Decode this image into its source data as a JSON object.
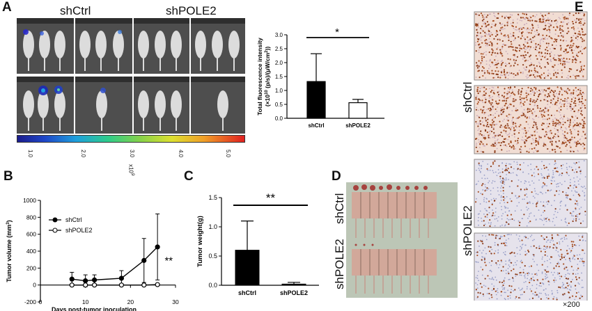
{
  "panel_labels": {
    "a": "A",
    "b": "B",
    "c": "C",
    "d": "D",
    "e": "E"
  },
  "groups": {
    "ctrl": "shCtrl",
    "pole2": "shPOLE2"
  },
  "magnification": "×200",
  "colorbar": {
    "ticks": [
      "1.0",
      "2.0",
      "3.0",
      "4.0",
      "5.0"
    ],
    "unit": "x10",
    "unit_exp": "9",
    "colors": [
      "#1b1c8c",
      "#1e46c8",
      "#1ea0dc",
      "#2ecc8a",
      "#86d24a",
      "#dde030",
      "#f0a028",
      "#e02020"
    ]
  },
  "chart_data": [
    {
      "id": "A-fluorescence",
      "type": "bar",
      "categories": [
        "shCtrl",
        "shPOLE2"
      ],
      "values": [
        1.32,
        0.56
      ],
      "errors": [
        1.0,
        0.12
      ],
      "fills": [
        "#000000",
        "#ffffff"
      ],
      "ylabel": "Total fluorescence intensity (×10¹⁰ (p/s)/(μW/cm²))",
      "ylabel_line1": "Total fluorescence intensity",
      "ylabel_line2": "(×10",
      "ylabel_sup": "10",
      "ylabel_mid": " (p/s)/(μW/cm",
      "ylabel_sup2": "2",
      "ylabel_end": "))",
      "ylim": [
        0,
        3.0
      ],
      "yticks": [
        "0.0",
        "0.5",
        "1.0",
        "1.5",
        "2.0",
        "2.5",
        "3.0"
      ],
      "significance": "*"
    },
    {
      "id": "B-tumor-volume",
      "type": "line",
      "xlabel": "Days post-tumor inoculation",
      "ylabel": "Tumor volume (mm³)",
      "ylabel_main": "Tumor volume (mm",
      "ylabel_sup": "3",
      "ylabel_end": ")",
      "xlim": [
        0,
        30
      ],
      "ylim": [
        -200,
        1000
      ],
      "xticks": [
        "0",
        "10",
        "20",
        "30"
      ],
      "yticks": [
        "-200",
        "0",
        "200",
        "400",
        "600",
        "800",
        "1000"
      ],
      "series": [
        {
          "name": "shCtrl",
          "marker": "filled",
          "x": [
            7,
            10,
            12,
            18,
            23,
            26
          ],
          "y": [
            70,
            50,
            60,
            80,
            290,
            450
          ],
          "err": [
            80,
            70,
            60,
            90,
            260,
            390
          ]
        },
        {
          "name": "shPOLE2",
          "marker": "open",
          "x": [
            7,
            10,
            12,
            18,
            23,
            26
          ],
          "y": [
            0,
            0,
            0,
            0,
            0,
            5
          ],
          "err": [
            10,
            10,
            10,
            10,
            10,
            10
          ]
        }
      ],
      "significance": "**"
    },
    {
      "id": "C-tumor-weight",
      "type": "bar",
      "categories": [
        "shCtrl",
        "shPOLE2"
      ],
      "values": [
        0.6,
        0.02
      ],
      "errors": [
        0.5,
        0.03
      ],
      "fills": [
        "#000000",
        "#000000"
      ],
      "ylabel": "Tumor weight(g)",
      "ylim": [
        0,
        1.5
      ],
      "yticks": [
        "0.0",
        "0.5",
        "1.0",
        "1.5"
      ],
      "significance": "**"
    }
  ]
}
